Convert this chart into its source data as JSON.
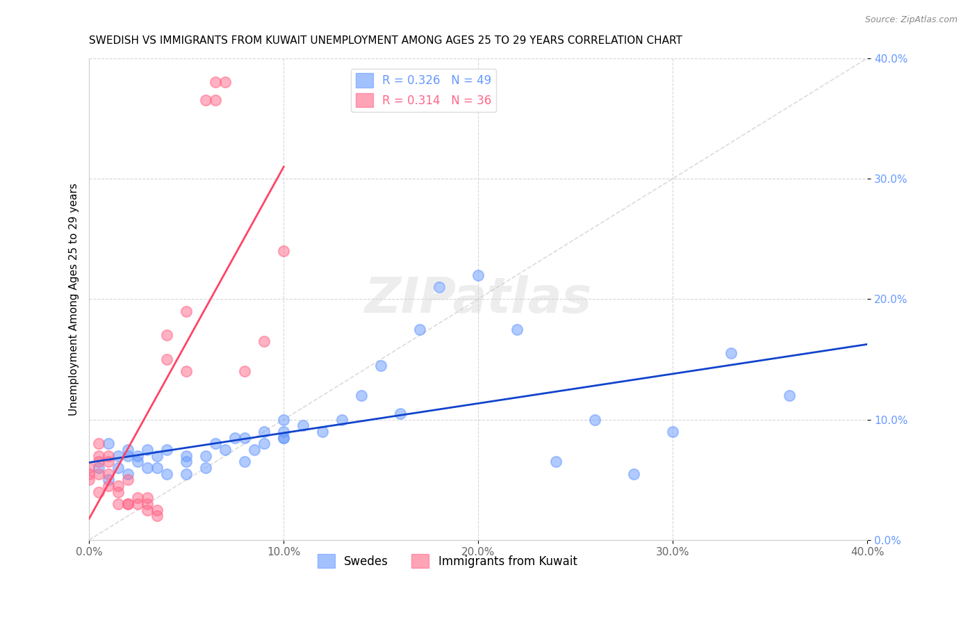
{
  "title": "SWEDISH VS IMMIGRANTS FROM KUWAIT UNEMPLOYMENT AMONG AGES 25 TO 29 YEARS CORRELATION CHART",
  "source": "Source: ZipAtlas.com",
  "xlabel": "",
  "ylabel": "Unemployment Among Ages 25 to 29 years",
  "xlim": [
    0,
    0.4
  ],
  "ylim": [
    0,
    0.4
  ],
  "xticks": [
    0.0,
    0.1,
    0.2,
    0.3,
    0.4
  ],
  "yticks": [
    0.0,
    0.1,
    0.2,
    0.3,
    0.4
  ],
  "xtick_labels": [
    "0.0%",
    "10.0%",
    "20.0%",
    "30.0%",
    "40.0%"
  ],
  "ytick_labels": [
    "0.0%",
    "10.0%",
    "20.0%",
    "30.0%",
    "40.0%"
  ],
  "blue_R": 0.326,
  "blue_N": 49,
  "pink_R": 0.314,
  "pink_N": 36,
  "legend_label_blue": "Swedes",
  "legend_label_pink": "Immigrants from Kuwait",
  "blue_color": "#6699ff",
  "pink_color": "#ff6688",
  "blue_line_color": "#1144cc",
  "pink_line_color": "#ff4466",
  "watermark": "ZIPatlas",
  "blue_scatter_x": [
    0.005,
    0.01,
    0.01,
    0.015,
    0.015,
    0.02,
    0.02,
    0.02,
    0.025,
    0.025,
    0.03,
    0.03,
    0.035,
    0.035,
    0.04,
    0.04,
    0.05,
    0.05,
    0.05,
    0.06,
    0.06,
    0.065,
    0.07,
    0.075,
    0.08,
    0.08,
    0.085,
    0.09,
    0.09,
    0.1,
    0.1,
    0.1,
    0.1,
    0.11,
    0.12,
    0.13,
    0.14,
    0.15,
    0.16,
    0.17,
    0.18,
    0.2,
    0.22,
    0.24,
    0.26,
    0.28,
    0.3,
    0.33,
    0.36
  ],
  "blue_scatter_y": [
    0.06,
    0.05,
    0.08,
    0.07,
    0.06,
    0.07,
    0.075,
    0.055,
    0.065,
    0.07,
    0.075,
    0.06,
    0.07,
    0.06,
    0.055,
    0.075,
    0.055,
    0.065,
    0.07,
    0.07,
    0.06,
    0.08,
    0.075,
    0.085,
    0.065,
    0.085,
    0.075,
    0.08,
    0.09,
    0.085,
    0.09,
    0.1,
    0.085,
    0.095,
    0.09,
    0.1,
    0.12,
    0.145,
    0.105,
    0.175,
    0.21,
    0.22,
    0.175,
    0.065,
    0.1,
    0.055,
    0.09,
    0.155,
    0.12
  ],
  "pink_scatter_x": [
    0.0,
    0.0,
    0.0,
    0.005,
    0.005,
    0.005,
    0.005,
    0.005,
    0.01,
    0.01,
    0.01,
    0.01,
    0.015,
    0.015,
    0.015,
    0.02,
    0.02,
    0.02,
    0.025,
    0.025,
    0.03,
    0.03,
    0.03,
    0.035,
    0.035,
    0.04,
    0.04,
    0.05,
    0.05,
    0.06,
    0.065,
    0.065,
    0.07,
    0.08,
    0.09,
    0.1
  ],
  "pink_scatter_y": [
    0.05,
    0.06,
    0.055,
    0.07,
    0.065,
    0.08,
    0.055,
    0.04,
    0.07,
    0.065,
    0.055,
    0.045,
    0.045,
    0.04,
    0.03,
    0.05,
    0.03,
    0.03,
    0.035,
    0.03,
    0.03,
    0.025,
    0.035,
    0.02,
    0.025,
    0.15,
    0.17,
    0.14,
    0.19,
    0.365,
    0.365,
    0.38,
    0.38,
    0.14,
    0.165,
    0.24
  ]
}
